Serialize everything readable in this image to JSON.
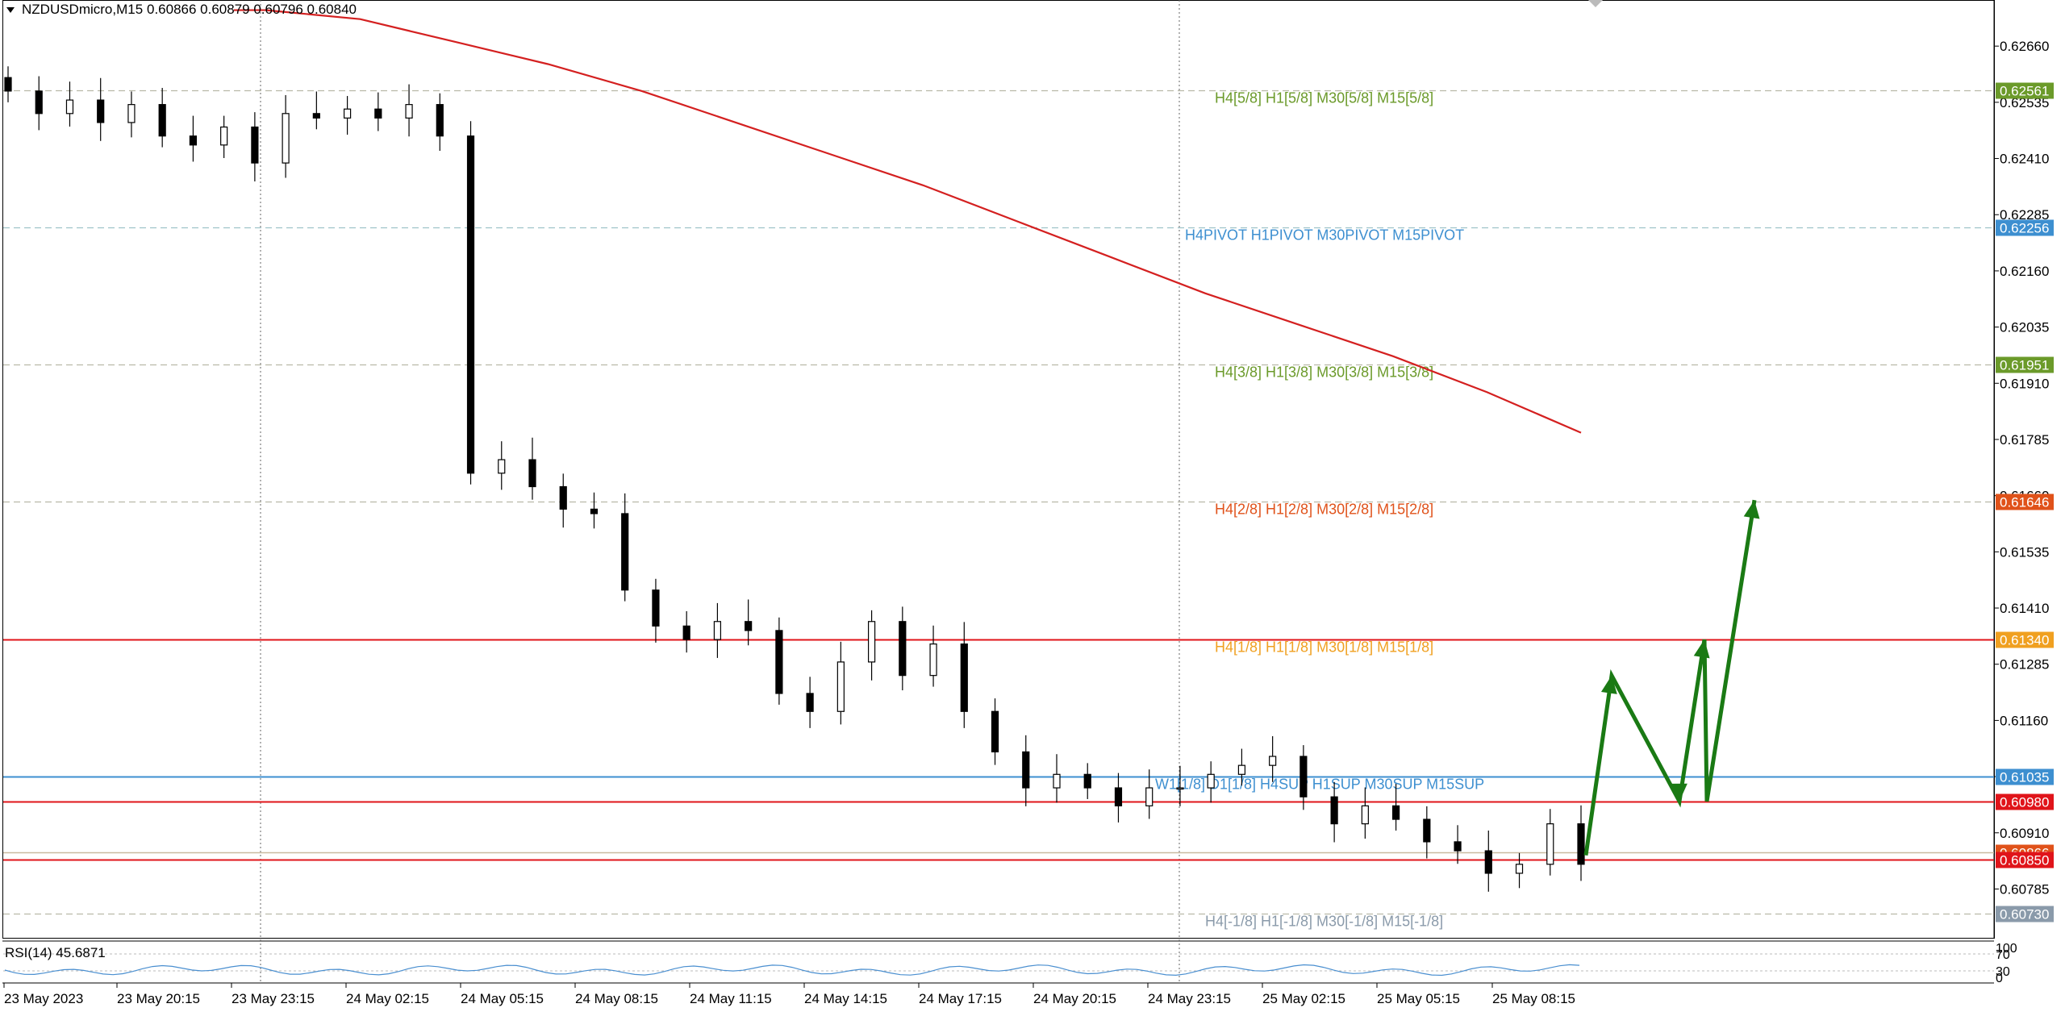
{
  "header": {
    "symbol": "NZDUSDmicro,M15",
    "ohlc": "0.60866 0.60879 0.60796 0.60840"
  },
  "rsi": {
    "label": "RSI(14) 45.6871",
    "levels": [
      "100",
      "70",
      "30",
      "0"
    ]
  },
  "colors": {
    "candle": "#000000",
    "ma": "#d42020",
    "arrow": "#1a7a14",
    "level_green": "#6b9a2a",
    "level_blue": "#3d8fd0",
    "level_orange": "#e0521a",
    "level_amber": "#f0a020",
    "level_red": "#e0141a",
    "level_gray": "#8a9aaa",
    "rsi_line": "#4a8fd0"
  },
  "chart_data": {
    "type": "candlestick",
    "symbol": "NZDUSDmicro",
    "timeframe": "M15",
    "ylim": [
      0.6068,
      0.6275
    ],
    "y_ticks": [
      "0.62660",
      "0.62535",
      "0.62410",
      "0.62285",
      "0.62160",
      "0.62035",
      "0.61910",
      "0.61785",
      "0.61660",
      "0.61535",
      "0.61410",
      "0.61285",
      "0.61160",
      "0.61035",
      "0.60910",
      "0.60785"
    ],
    "x_labels": [
      "23 May 2023",
      "23 May 20:15",
      "23 May 23:15",
      "24 May 02:15",
      "24 May 05:15",
      "24 May 08:15",
      "24 May 11:15",
      "24 May 14:15",
      "24 May 17:15",
      "24 May 20:15",
      "24 May 23:15",
      "25 May 02:15",
      "25 May 05:15",
      "25 May 08:15"
    ],
    "levels": [
      {
        "price": 0.62561,
        "label": "H4[5/8] H1[5/8] M30[5/8] M15[5/8]",
        "price_label": "0.62561",
        "color": "#6b9a2a",
        "style": "dashed"
      },
      {
        "price": 0.62256,
        "label": "H4PIVOT H1PIVOT M30PIVOT M15PIVOT",
        "price_label": "0.62256",
        "color": "#3d8fd0",
        "style": "dashed"
      },
      {
        "price": 0.61951,
        "label": "H4[3/8] H1[3/8] M30[3/8] M15[3/8]",
        "price_label": "0.61951",
        "color": "#6b9a2a",
        "style": "dashed"
      },
      {
        "price": 0.61646,
        "label": "H4[2/8] H1[2/8] M30[2/8] M15[2/8]",
        "price_label": "0.61646",
        "color": "#e0521a",
        "style": "dashed"
      },
      {
        "price": 0.6134,
        "label": "H4[1/8] H1[1/8] M30[1/8] M15[1/8]",
        "price_label": "0.61340",
        "color": "#f0a020",
        "style": "solid-red"
      },
      {
        "price": 0.61035,
        "label": "W1[1/8] D1[1/8] H4SUP H1SUP M30SUP M15SUP",
        "price_label": "0.61035",
        "color": "#3d8fd0",
        "style": "solid"
      },
      {
        "price": 0.6098,
        "label": "",
        "price_label": "0.60980",
        "color": "#e0141a",
        "style": "solid"
      },
      {
        "price": 0.60866,
        "label": "",
        "price_label": "0.60866",
        "color": "#e0521a",
        "style": "solid-thin"
      },
      {
        "price": 0.6085,
        "label": "",
        "price_label": "0.60850",
        "color": "#e0141a",
        "style": "solid"
      },
      {
        "price": 0.6073,
        "label": "H4[-1/8] H1[-1/8] M30[-1/8] M15[-1/8]",
        "price_label": "0.60730",
        "color": "#8a9aaa",
        "style": "dashed"
      }
    ],
    "close_path": [
      0.6256,
      0.6251,
      0.6254,
      0.6249,
      0.6253,
      0.6246,
      0.6244,
      0.6248,
      0.624,
      0.6251,
      0.625,
      0.6252,
      0.625,
      0.6253,
      0.6246,
      0.6171,
      0.6174,
      0.6168,
      0.6163,
      0.6162,
      0.6145,
      0.6137,
      0.6134,
      0.6138,
      0.6136,
      0.6122,
      0.6118,
      0.6129,
      0.6138,
      0.6126,
      0.6133,
      0.6118,
      0.6109,
      0.6101,
      0.6104,
      0.6101,
      0.6097,
      0.6101,
      0.6101,
      0.6104,
      0.6106,
      0.6108,
      0.6099,
      0.6093,
      0.6097,
      0.6094,
      0.6089,
      0.6087,
      0.6082,
      0.6084,
      0.6093,
      0.6084
    ],
    "ma_path": [
      0.6274,
      0.6272,
      0.6267,
      0.6262,
      0.6256,
      0.6249,
      0.6242,
      0.6235,
      0.6227,
      0.6219,
      0.6211,
      0.6204,
      0.6197,
      0.6189,
      0.618
    ],
    "projection": [
      0.6086,
      0.6126,
      0.6098,
      0.6134,
      0.6098,
      0.6165
    ]
  }
}
